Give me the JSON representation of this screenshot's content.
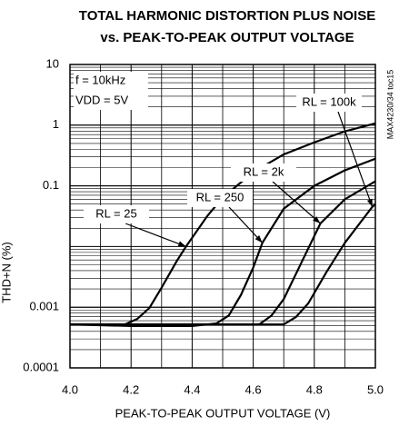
{
  "chart_data": {
    "type": "line",
    "title": [
      "TOTAL HARMONIC DISTORTION PLUS NOISE",
      "vs. PEAK-TO-PEAK OUTPUT VOLTAGE"
    ],
    "x_label": "PEAK-TO-PEAK OUTPUT VOLTAGE (V)",
    "y_label": "THD+N (%)",
    "annotations": [
      "f = 10kHz",
      "VDD = 5V"
    ],
    "side_note": "MAX4230/34 toc15",
    "log_y": true,
    "grid": true,
    "color": "#000000",
    "xlim": [
      4.0,
      5.0
    ],
    "xticks": [
      {
        "value": 4.0,
        "label": "4.0"
      },
      {
        "value": 4.2,
        "label": "4.2"
      },
      {
        "value": 4.4,
        "label": "4.4"
      },
      {
        "value": 4.6,
        "label": "4.6"
      },
      {
        "value": 4.8,
        "label": "4.8"
      },
      {
        "value": 5.0,
        "label": "5.0"
      }
    ],
    "ylim": [
      0.0001,
      10
    ],
    "yticks": [
      10,
      1,
      0.1,
      0.001,
      0.0001
    ],
    "series": [
      {
        "name": "RL = 25",
        "color": "#000000",
        "x": [
          4.0,
          4.18,
          4.22,
          4.26,
          4.3,
          4.35,
          4.38,
          4.45,
          4.5,
          4.6,
          4.7,
          4.8,
          4.9,
          5.0
        ],
        "values": [
          0.00052,
          0.00052,
          0.00064,
          0.00097,
          0.0021,
          0.0058,
          0.01,
          0.032,
          0.064,
          0.168,
          0.33,
          0.52,
          0.79,
          1.07
        ]
      },
      {
        "name": "RL = 250",
        "color": "#000000",
        "x": [
          4.0,
          4.2,
          4.4,
          4.48,
          4.52,
          4.56,
          4.6,
          4.63,
          4.7,
          4.8,
          4.9,
          5.0
        ],
        "values": [
          0.00052,
          0.00049,
          0.00049,
          0.00054,
          0.00073,
          0.0016,
          0.0045,
          0.0115,
          0.042,
          0.1,
          0.18,
          0.28
        ]
      },
      {
        "name": "RL = 2k",
        "color": "#000000",
        "x": [
          4.0,
          4.3,
          4.62,
          4.66,
          4.7,
          4.75,
          4.82,
          4.9,
          5.0
        ],
        "values": [
          0.00052,
          0.00052,
          0.00052,
          0.00073,
          0.00136,
          0.0045,
          0.024,
          0.06,
          0.119
        ]
      },
      {
        "name": "RL = 100k",
        "color": "#000000",
        "x": [
          4.0,
          4.4,
          4.7,
          4.74,
          4.78,
          4.84,
          4.9,
          4.99,
          5.0
        ],
        "values": [
          0.00052,
          0.00052,
          0.00052,
          0.00069,
          0.00115,
          0.0038,
          0.0115,
          0.045,
          0.05
        ]
      }
    ]
  }
}
